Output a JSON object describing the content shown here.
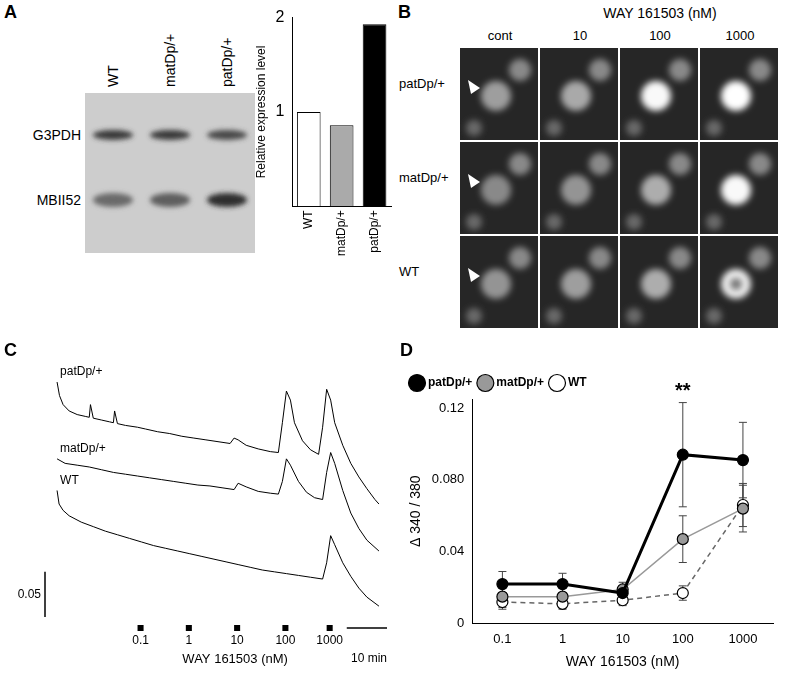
{
  "panels": [
    "A",
    "B",
    "C",
    "D"
  ],
  "blot": {
    "lanes": [
      "WT",
      "matDp/+",
      "patDp/+"
    ],
    "bands": [
      "G3PDH",
      "MBII52"
    ]
  },
  "imaging": {
    "title": "WAY 161503 (nM)",
    "columns": [
      "cont",
      "10",
      "100",
      "1000"
    ],
    "rows": [
      "patDp/+",
      "matDp/+",
      "WT"
    ]
  },
  "chart_data": [
    {
      "type": "bar",
      "categories": [
        "WT",
        "matDp/+",
        "patDp/+"
      ],
      "values": [
        1,
        0.86,
        1.93
      ],
      "colors": [
        "#ffffff",
        "#aaaaaa",
        "#000000"
      ],
      "y_label": "Relative expression level",
      "ylim": [
        0,
        2
      ],
      "yticks": [
        1,
        2
      ],
      "grid": false
    },
    {
      "type": "line",
      "x_label": "WAY 161503 (nM)",
      "xlim": [
        -3,
        82
      ],
      "ylim": [
        0,
        0.27
      ],
      "tick_labels": false,
      "grid": false,
      "series": [
        {
          "name": "patDp/+",
          "color": "#000000",
          "line_style": "solid",
          "x": [
            0,
            0.6,
            1.5,
            3,
            5,
            7,
            8,
            8.3,
            9,
            11,
            13,
            14,
            14.3,
            15,
            17,
            20,
            22,
            25,
            28,
            31,
            34,
            37,
            40,
            43,
            44,
            45,
            47,
            50,
            53,
            55,
            56,
            57,
            58,
            59,
            61,
            63,
            65,
            66,
            67,
            68,
            69,
            71,
            73,
            75,
            77,
            79,
            80
          ],
          "values": [
            0.26,
            0.245,
            0.235,
            0.228,
            0.224,
            0.222,
            0.221,
            0.235,
            0.22,
            0.218,
            0.216,
            0.215,
            0.228,
            0.214,
            0.212,
            0.21,
            0.208,
            0.205,
            0.203,
            0.2,
            0.198,
            0.196,
            0.194,
            0.192,
            0.198,
            0.196,
            0.19,
            0.186,
            0.183,
            0.182,
            0.215,
            0.25,
            0.24,
            0.215,
            0.195,
            0.185,
            0.18,
            0.21,
            0.252,
            0.24,
            0.215,
            0.19,
            0.17,
            0.155,
            0.142,
            0.13,
            0.125
          ]
        },
        {
          "name": "matDp/+",
          "color": "#000000",
          "line_style": "solid",
          "x": [
            0,
            2,
            5,
            8,
            11,
            14,
            17,
            20,
            23,
            26,
            29,
            32,
            35,
            38,
            41,
            44,
            45,
            47,
            50,
            53,
            55,
            56,
            57,
            58,
            60,
            62,
            64,
            66,
            67,
            68,
            69,
            71,
            73,
            75,
            77,
            80
          ],
          "values": [
            0.175,
            0.17,
            0.168,
            0.166,
            0.163,
            0.16,
            0.158,
            0.156,
            0.154,
            0.152,
            0.15,
            0.148,
            0.146,
            0.145,
            0.143,
            0.141,
            0.148,
            0.144,
            0.139,
            0.137,
            0.136,
            0.15,
            0.175,
            0.168,
            0.15,
            0.138,
            0.132,
            0.13,
            0.16,
            0.182,
            0.17,
            0.14,
            0.115,
            0.098,
            0.085,
            0.073
          ]
        },
        {
          "name": "WT",
          "color": "#000000",
          "line_style": "solid",
          "x": [
            0,
            0.5,
            1.5,
            3,
            6,
            9,
            12,
            15,
            18,
            21,
            24,
            27,
            30,
            33,
            36,
            39,
            42,
            45,
            48,
            51,
            54,
            57,
            60,
            63,
            66,
            67,
            68,
            69,
            71,
            73,
            75,
            77,
            80
          ],
          "values": [
            0.14,
            0.125,
            0.118,
            0.112,
            0.105,
            0.1,
            0.095,
            0.091,
            0.087,
            0.083,
            0.079,
            0.076,
            0.073,
            0.07,
            0.067,
            0.064,
            0.061,
            0.058,
            0.055,
            0.052,
            0.05,
            0.048,
            0.046,
            0.044,
            0.042,
            0.06,
            0.09,
            0.08,
            0.06,
            0.045,
            0.032,
            0.022,
            0.012
          ]
        }
      ],
      "applications": {
        "x": [
          20,
          32,
          44,
          56,
          67
        ],
        "labels": [
          "0.1",
          "1",
          "10",
          "100",
          "1000"
        ],
        "duration": 1.5
      },
      "scale_bars": {
        "y": 0.05,
        "x": {
          "value": 10,
          "label": "10 min"
        }
      }
    },
    {
      "type": "line",
      "categories": [
        "0.1",
        "1",
        "10",
        "100",
        "1000"
      ],
      "x_label": "WAY 161503 (nM)",
      "y_label": "Δ 340 / 380",
      "ylim": [
        0,
        0.125
      ],
      "yticks": [
        0,
        0.04,
        {
          "value": 0.08,
          "label": "0.080"
        },
        0.12
      ],
      "legend": "top-left",
      "grid": false,
      "series": [
        {
          "name": "patDp/+",
          "color": "#000000",
          "marker": "circle",
          "line_style": "bold",
          "values": [
            0.022,
            0.022,
            0.017,
            0.094,
            0.091
          ],
          "errors": [
            0.007,
            0.006,
            0.004,
            0.029,
            0.021
          ]
        },
        {
          "name": "matDp/+",
          "color": "#999999",
          "marker": "circle",
          "line_style": "solid",
          "values": [
            0.015,
            0.015,
            0.019,
            0.047,
            0.064
          ],
          "errors": [
            0.006,
            0.005,
            0.004,
            0.013,
            0.013
          ]
        },
        {
          "name": "WT",
          "color": "#ffffff",
          "marker": "circle",
          "line_style": "dashed",
          "values": [
            0.012,
            0.011,
            0.013,
            0.017,
            0.066
          ],
          "errors": [
            0.004,
            0.003,
            0.003,
            0.004,
            0.012
          ]
        }
      ],
      "annotations": [
        {
          "category": "100",
          "text": "**"
        }
      ]
    }
  ]
}
